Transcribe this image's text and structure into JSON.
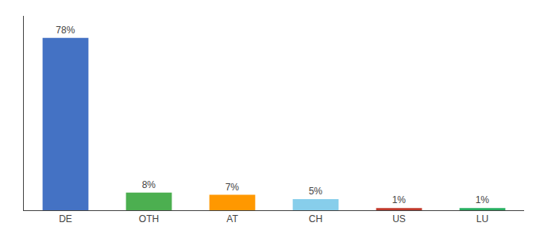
{
  "chart_data": {
    "type": "bar",
    "categories": [
      "DE",
      "OTH",
      "AT",
      "CH",
      "US",
      "LU"
    ],
    "values": [
      78,
      8,
      7,
      5,
      1,
      1
    ],
    "value_labels": [
      "78%",
      "8%",
      "7%",
      "5%",
      "1%",
      "1%"
    ],
    "data_labels": true,
    "colors": [
      "#4472c4",
      "#4caf50",
      "#ff9800",
      "#87ceeb",
      "#c0392b",
      "#27ae60"
    ],
    "ylim": [
      0,
      88
    ],
    "grid": false,
    "tick_labels": "x"
  }
}
